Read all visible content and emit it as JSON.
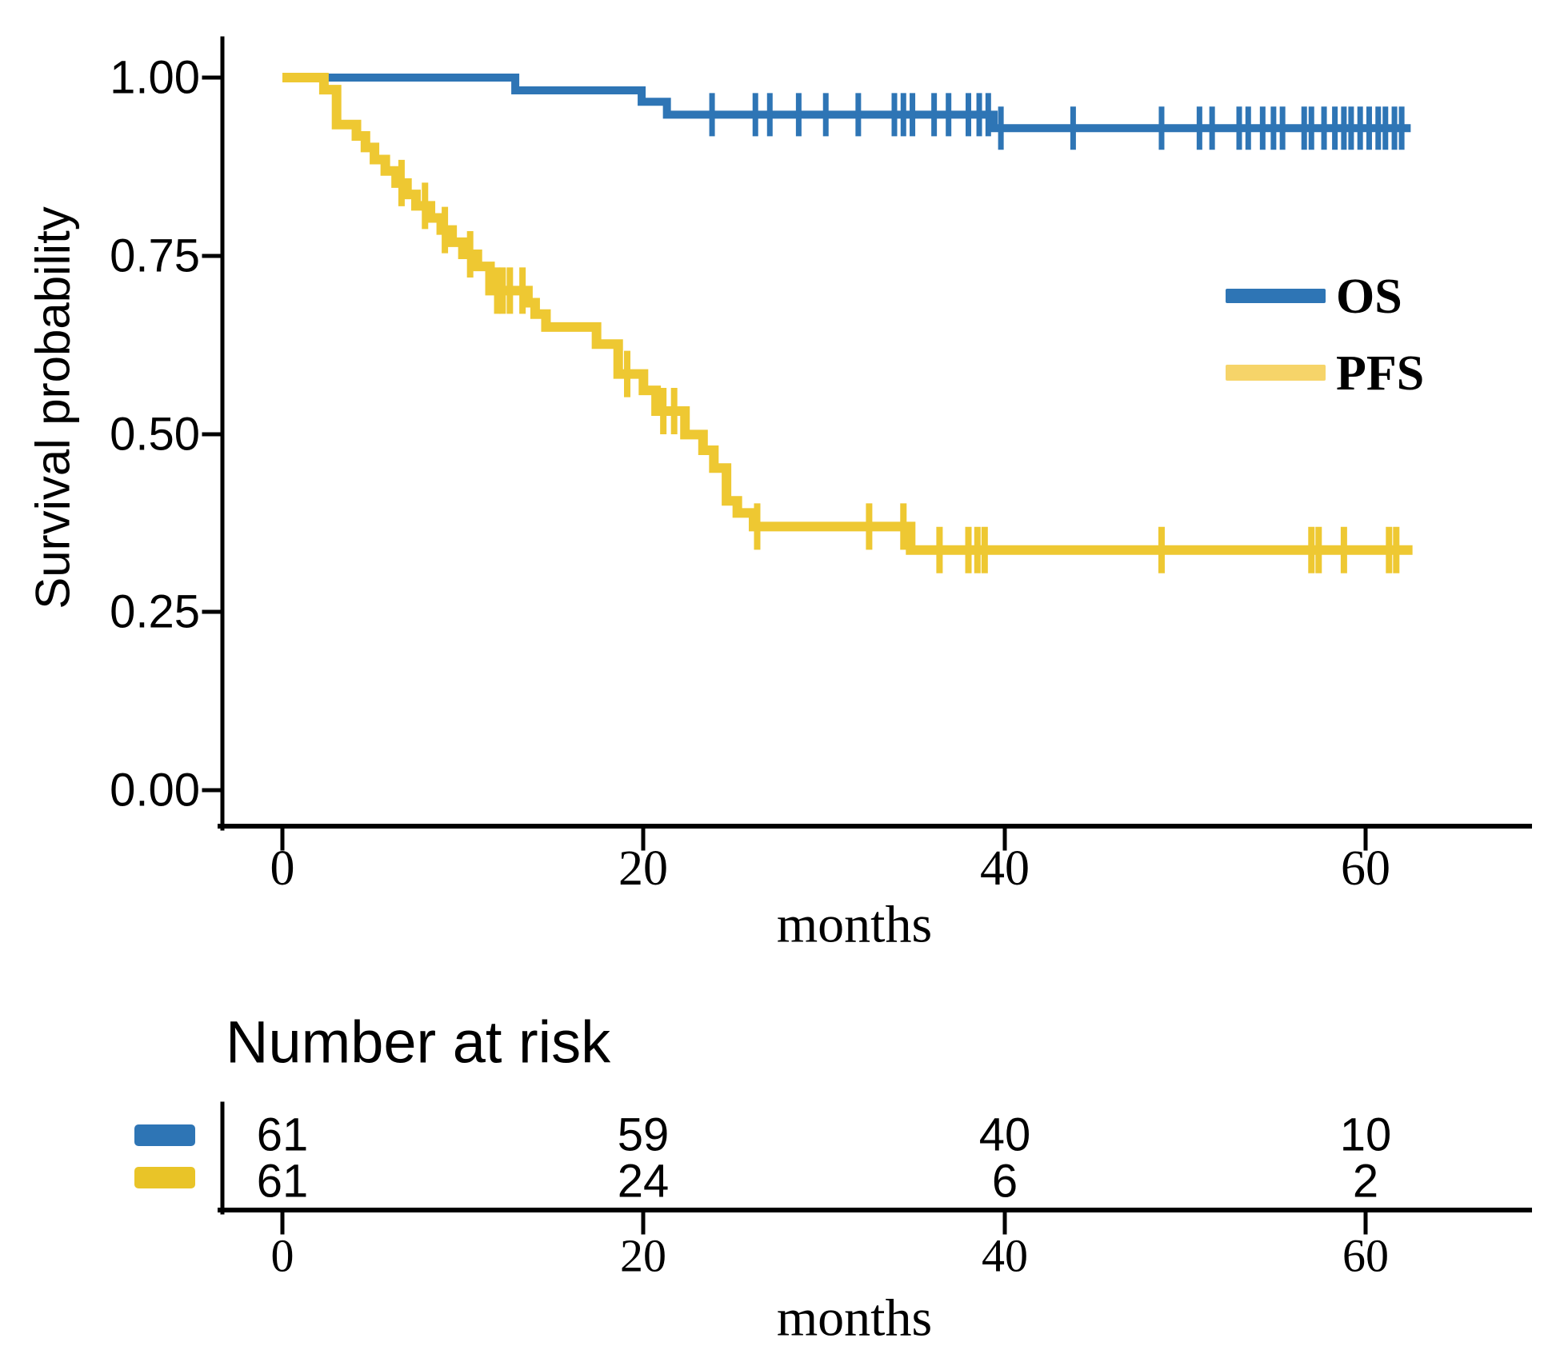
{
  "chart_data": {
    "type": "line",
    "variant": "kaplan-meier-step",
    "title": "",
    "xlabel": "months",
    "ylabel": "Survival probability",
    "x_ticks": [
      "0",
      "20",
      "40",
      "60"
    ],
    "x_tick_values": [
      0,
      20,
      40,
      60
    ],
    "y_ticks": [
      "1.00",
      "0.75",
      "0.50",
      "0.25",
      "0.00"
    ],
    "y_tick_values": [
      1.0,
      0.75,
      0.5,
      0.25,
      0.0
    ],
    "xlim": [
      0,
      65
    ],
    "ylim": [
      0,
      1
    ],
    "grid": false,
    "legend_position": "middle-right",
    "series": [
      {
        "name": "OS",
        "color": "#2e75b5",
        "line_width": 10,
        "censor_width": 7,
        "censor_half_height": 27,
        "steps": [
          [
            0,
            1.0
          ],
          [
            12.9,
            0.982
          ],
          [
            19.9,
            0.966
          ],
          [
            21.3,
            0.948
          ],
          [
            39.4,
            0.929
          ]
        ],
        "end_time": 62.5,
        "censor_times": [
          23.8,
          26.2,
          27.0,
          28.6,
          30.1,
          31.9,
          33.9,
          34.4,
          34.9,
          36.1,
          36.9,
          38.0,
          38.6,
          39.1,
          39.8,
          43.8,
          48.7,
          50.8,
          51.5,
          53.0,
          53.5,
          54.3,
          54.9,
          55.4,
          56.6,
          57.0,
          57.7,
          58.3,
          58.8,
          59.2,
          59.7,
          60.2,
          60.7,
          61.1,
          61.6,
          62.0
        ]
      },
      {
        "name": "PFS",
        "color": "#eec832",
        "line_width": 12,
        "censor_width": 8,
        "censor_half_height": 29,
        "steps": [
          [
            0,
            1.0
          ],
          [
            2.3,
            0.983
          ],
          [
            3.0,
            0.934
          ],
          [
            4.1,
            0.918
          ],
          [
            4.6,
            0.902
          ],
          [
            5.1,
            0.885
          ],
          [
            5.7,
            0.869
          ],
          [
            6.3,
            0.852
          ],
          [
            6.9,
            0.836
          ],
          [
            7.4,
            0.82
          ],
          [
            8.2,
            0.803
          ],
          [
            8.8,
            0.786
          ],
          [
            9.4,
            0.769
          ],
          [
            10.0,
            0.752
          ],
          [
            10.8,
            0.735
          ],
          [
            11.5,
            0.701
          ],
          [
            13.6,
            0.684
          ],
          [
            14.0,
            0.668
          ],
          [
            14.6,
            0.65
          ],
          [
            17.4,
            0.626
          ],
          [
            18.6,
            0.584
          ],
          [
            20.0,
            0.561
          ],
          [
            20.7,
            0.532
          ],
          [
            22.3,
            0.499
          ],
          [
            23.3,
            0.477
          ],
          [
            23.9,
            0.452
          ],
          [
            24.6,
            0.406
          ],
          [
            25.2,
            0.389
          ],
          [
            26.1,
            0.37
          ],
          [
            34.8,
            0.337
          ]
        ],
        "end_time": 62.6,
        "censor_times": [
          6.6,
          7.9,
          9.0,
          10.4,
          11.9,
          12.2,
          12.6,
          13.3,
          19.1,
          21.1,
          21.7,
          26.3,
          32.5,
          34.4,
          36.4,
          38.0,
          38.5,
          38.9,
          48.7,
          57.0,
          57.4,
          58.8,
          61.3,
          61.7
        ]
      }
    ]
  },
  "legend": {
    "items": [
      {
        "label": "OS",
        "swatch_color": "#2e75b5",
        "label_color": "#1c3a5e"
      },
      {
        "label": "PFS",
        "swatch_color": "#f6d469",
        "label_color": "#a5811f"
      }
    ]
  },
  "risk_table": {
    "title": "Number at risk",
    "xlabel": "months",
    "x_ticks": [
      "0",
      "20",
      "40",
      "60"
    ],
    "rows": [
      {
        "name": "OS",
        "color": "#2e75b5",
        "values": [
          "61",
          "59",
          "40",
          "10"
        ]
      },
      {
        "name": "PFS",
        "color": "#e9c428",
        "values": [
          "61",
          "24",
          "6",
          "2"
        ]
      }
    ]
  }
}
